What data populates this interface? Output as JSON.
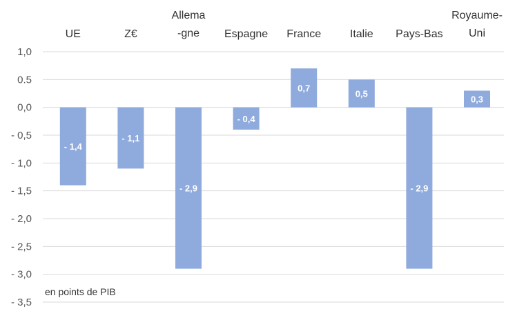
{
  "chart_data": {
    "type": "bar",
    "categories": [
      [
        "UE"
      ],
      [
        "Z€"
      ],
      [
        "Allema",
        "-gne"
      ],
      [
        "Espagne"
      ],
      [
        "France"
      ],
      [
        "Italie"
      ],
      [
        "Pays-Bas"
      ],
      [
        "Royaume-",
        "Uni"
      ]
    ],
    "values": [
      -1.4,
      -1.1,
      -2.9,
      -0.4,
      0.7,
      0.5,
      -2.9,
      0.3
    ],
    "data_labels": [
      "- 1,4",
      "- 1,1",
      "- 2,9",
      "- 0,4",
      "0,7",
      "0,5",
      "- 2,9",
      "0,3"
    ],
    "ylim": [
      -3.5,
      1.0
    ],
    "yticks": [
      {
        "value": 1.0,
        "label": "1,0"
      },
      {
        "value": 0.5,
        "label": "0.5"
      },
      {
        "value": 0.0,
        "label": "0,0"
      },
      {
        "value": -0.5,
        "label": "- 0,5"
      },
      {
        "value": -1.0,
        "label": "- 1,0"
      },
      {
        "value": -1.5,
        "label": "- 1,5"
      },
      {
        "value": -2.0,
        "label": "- 2,0"
      },
      {
        "value": -2.5,
        "label": "- 2,5"
      },
      {
        "value": -3.0,
        "label": "- 3,0"
      },
      {
        "value": -3.5,
        "label": "- 3,5"
      }
    ],
    "grid": true,
    "bar_color": "#8faadc",
    "grid_color": "#d9d9d9",
    "annotation": "en points de PIB"
  }
}
